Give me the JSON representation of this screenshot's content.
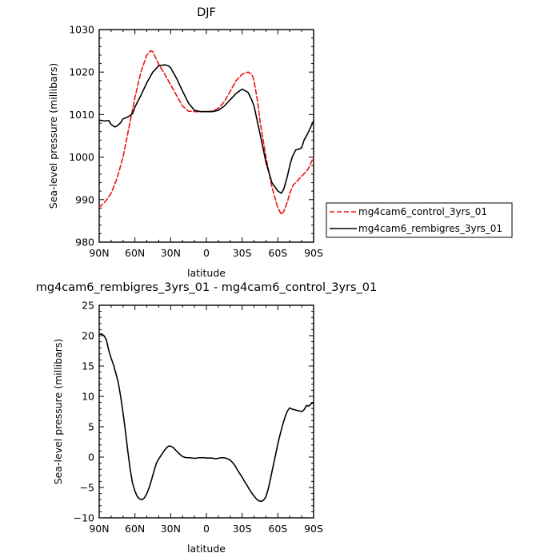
{
  "chart_data": [
    {
      "type": "line",
      "title": "DJF",
      "xlabel": "latitude",
      "ylabel": "Sea-level pressure (millibars)",
      "xlim": [
        90,
        -90
      ],
      "ylim": [
        980,
        1030
      ],
      "x_ticks": [
        90,
        60,
        30,
        0,
        -30,
        -60,
        -90
      ],
      "x_tick_labels": [
        "90N",
        "60N",
        "30N",
        "0",
        "30S",
        "60S",
        "90S"
      ],
      "y_ticks": [
        980,
        990,
        1000,
        1010,
        1020,
        1030
      ],
      "y_tick_labels": [
        "980",
        "990",
        "1000",
        "1010",
        "1020",
        "1030"
      ],
      "grid": false,
      "legend": "right",
      "series": [
        {
          "name": "mg4cam6_control_3yrs_01",
          "color": "#ee1111",
          "dash": "dashed",
          "x": [
            90,
            85,
            80,
            75,
            70,
            65,
            60,
            55,
            50,
            47,
            45,
            42,
            40,
            35,
            30,
            25,
            20,
            15,
            10,
            5,
            0,
            -5,
            -10,
            -15,
            -20,
            -25,
            -30,
            -35,
            -38,
            -40,
            -43,
            -45,
            -50,
            -55,
            -60,
            -63,
            -65,
            -68,
            -70,
            -73,
            -75,
            -80,
            -85,
            -90
          ],
          "y": [
            988.2,
            989.5,
            991.5,
            995,
            1000,
            1007,
            1014,
            1020,
            1024,
            1025,
            1024.8,
            1023,
            1021.8,
            1019.5,
            1017,
            1014.5,
            1012,
            1010.8,
            1010.7,
            1010.7,
            1010.7,
            1010.8,
            1011.5,
            1013,
            1015.5,
            1018,
            1019.5,
            1020,
            1019.5,
            1018,
            1013,
            1008.5,
            1000,
            993,
            988,
            986.5,
            987.3,
            989.5,
            991.5,
            993.5,
            994,
            995.5,
            997,
            1000
          ]
        },
        {
          "name": "mg4cam6_rembigres_3yrs_01",
          "color": "#000000",
          "dash": "solid",
          "x": [
            90,
            85,
            82,
            80,
            77,
            75,
            72,
            70,
            68,
            65,
            62,
            60,
            55,
            50,
            45,
            40,
            35,
            32,
            30,
            25,
            20,
            15,
            10,
            5,
            0,
            -5,
            -10,
            -15,
            -20,
            -25,
            -30,
            -35,
            -38,
            -40,
            -45,
            -50,
            -55,
            -60,
            -63,
            -65,
            -68,
            -70,
            -72,
            -75,
            -77,
            -80,
            -82,
            -85,
            -90
          ],
          "y": [
            1008.7,
            1008.5,
            1008.6,
            1007.7,
            1007.1,
            1007.3,
            1008.1,
            1009,
            1009.2,
            1009.6,
            1010.2,
            1011.8,
            1014.5,
            1017.5,
            1020,
            1021.5,
            1021.7,
            1021.5,
            1021,
            1018.5,
            1015.5,
            1012.7,
            1011,
            1010.7,
            1010.7,
            1010.7,
            1011,
            1012,
            1013.5,
            1015,
            1016,
            1015.2,
            1013.5,
            1012,
            1005.5,
            998.8,
            994,
            992,
            991.5,
            992.5,
            995.5,
            998,
            1000,
            1001.7,
            1001.8,
            1002.2,
            1004,
            1005.5,
            1008.5
          ]
        }
      ]
    },
    {
      "type": "line",
      "title": "mg4cam6_rembigres_3yrs_01 - mg4cam6_control_3yrs_01",
      "xlabel": "latitude",
      "ylabel": "Sea-level pressure (millibars)",
      "xlim": [
        90,
        -90
      ],
      "ylim": [
        -10,
        25
      ],
      "x_ticks": [
        90,
        60,
        30,
        0,
        -30,
        -60,
        -90
      ],
      "x_tick_labels": [
        "90N",
        "60N",
        "30N",
        "0",
        "30S",
        "60S",
        "90S"
      ],
      "y_ticks": [
        -10,
        -5,
        0,
        5,
        10,
        15,
        20,
        25
      ],
      "y_tick_labels": [
        "−10",
        "−5",
        "0",
        "5",
        "10",
        "15",
        "20",
        "25"
      ],
      "grid": false,
      "series": [
        {
          "color": "#000000",
          "dash": "solid",
          "x": [
            90,
            88,
            86,
            84,
            82,
            80,
            78,
            76,
            74,
            72,
            70,
            68,
            66,
            64,
            62,
            60,
            58,
            56,
            54,
            52,
            50,
            48,
            46,
            44,
            42,
            40,
            38,
            36,
            34,
            32,
            30,
            28,
            26,
            24,
            22,
            20,
            18,
            16,
            14,
            12,
            10,
            8,
            6,
            4,
            2,
            0,
            -2,
            -4,
            -6,
            -8,
            -10,
            -12,
            -14,
            -16,
            -18,
            -20,
            -22,
            -24,
            -26,
            -28,
            -30,
            -32,
            -34,
            -36,
            -38,
            -40,
            -42,
            -44,
            -46,
            -48,
            -50,
            -52,
            -54,
            -56,
            -58,
            -60,
            -62,
            -64,
            -66,
            -68,
            -70,
            -72,
            -74,
            -76,
            -78,
            -80,
            -82,
            -84,
            -86,
            -88,
            -90
          ],
          "y": [
            20.2,
            20.3,
            20,
            19.3,
            17.6,
            16.3,
            15.2,
            13.8,
            12.3,
            10,
            7.3,
            4.3,
            1,
            -2,
            -4.3,
            -5.6,
            -6.5,
            -6.9,
            -7,
            -6.7,
            -6,
            -5,
            -3.7,
            -2.3,
            -1,
            -0.3,
            0.3,
            0.9,
            1.4,
            1.8,
            1.8,
            1.6,
            1.2,
            0.8,
            0.4,
            0.1,
            -0.05,
            -0.1,
            -0.1,
            -0.15,
            -0.2,
            -0.15,
            -0.1,
            -0.1,
            -0.1,
            -0.15,
            -0.15,
            -0.15,
            -0.2,
            -0.25,
            -0.2,
            -0.1,
            -0.1,
            -0.15,
            -0.3,
            -0.5,
            -0.9,
            -1.4,
            -2.1,
            -2.7,
            -3.3,
            -4,
            -4.6,
            -5.3,
            -5.9,
            -6.4,
            -6.9,
            -7.2,
            -7.3,
            -7.1,
            -6.5,
            -5.2,
            -3.4,
            -1.5,
            0.3,
            2.2,
            3.8,
            5.3,
            6.6,
            7.6,
            8.1,
            7.9,
            7.8,
            7.7,
            7.6,
            7.5,
            7.8,
            8.5,
            8.4,
            8.8,
            9
          ]
        }
      ]
    }
  ]
}
